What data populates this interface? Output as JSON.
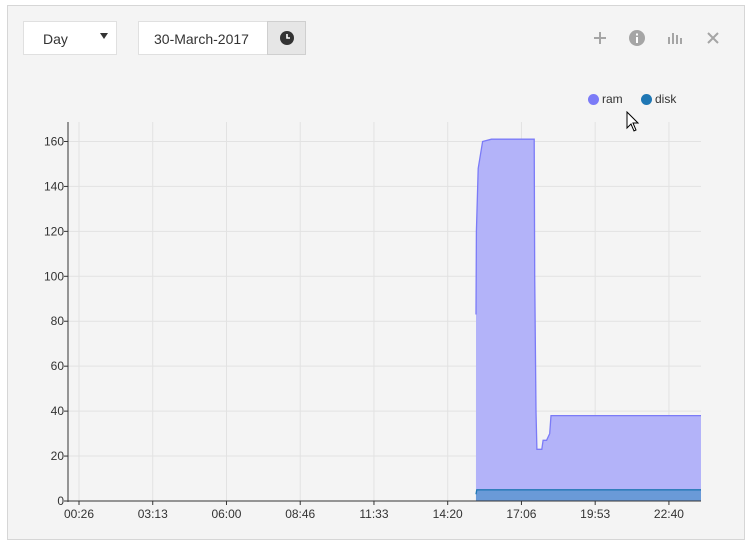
{
  "controls": {
    "period_selected": "Day",
    "date_value": "30-March-2017",
    "icons": [
      "add-icon",
      "info-icon",
      "bar-chart-icon",
      "close-icon"
    ]
  },
  "chart_data": {
    "type": "area",
    "x_ticks": [
      "00:26",
      "03:13",
      "06:00",
      "08:46",
      "11:33",
      "14:20",
      "17:06",
      "19:53",
      "22:40"
    ],
    "y_ticks": [
      0,
      20,
      40,
      60,
      80,
      100,
      120,
      140,
      160
    ],
    "ylim": [
      0,
      166
    ],
    "grid": true,
    "legend_position": "top-right",
    "series": [
      {
        "name": "ram",
        "color": "#7b7bf7",
        "fill": "#b3b3f9",
        "points": [
          [
            "15:25",
            83
          ],
          [
            "15:26",
            120
          ],
          [
            "15:30",
            148
          ],
          [
            "15:40",
            160
          ],
          [
            "16:00",
            161
          ],
          [
            "16:20",
            161
          ],
          [
            "17:37",
            161
          ],
          [
            "17:38",
            100
          ],
          [
            "17:41",
            40
          ],
          [
            "17:43",
            23
          ],
          [
            "17:54",
            23
          ],
          [
            "17:57",
            27
          ],
          [
            "18:05",
            27
          ],
          [
            "18:12",
            30
          ],
          [
            "18:15",
            38
          ],
          [
            "23:59",
            38
          ]
        ]
      },
      {
        "name": "disk",
        "color": "#1f77b4",
        "fill": "#6a9ad8",
        "points": [
          [
            "15:25",
            3
          ],
          [
            "15:27",
            5
          ],
          [
            "23:59",
            5
          ]
        ]
      }
    ]
  }
}
